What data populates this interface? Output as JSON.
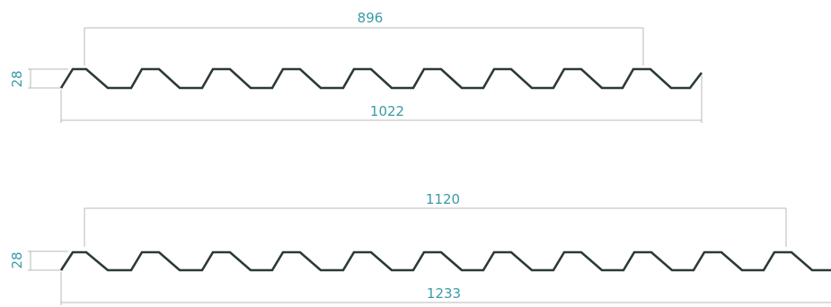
{
  "profiles": [
    {
      "id": "profile-a",
      "dimensions": {
        "effective_width": "896",
        "total_width": "1022",
        "height": "28"
      }
    },
    {
      "id": "profile-b",
      "dimensions": {
        "effective_width": "1120",
        "total_width": "1233",
        "height": "28"
      }
    }
  ],
  "colors": {
    "profile_stroke": "#2b3a36",
    "dimension_line": "#b9b9b9",
    "dimension_text": "#3b9aa6"
  }
}
